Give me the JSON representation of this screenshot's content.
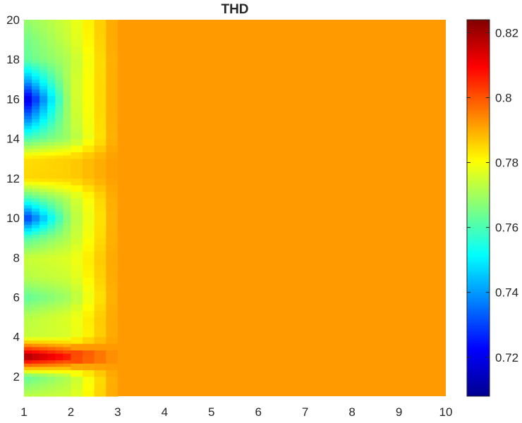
{
  "chart_data": {
    "type": "heatmap",
    "title": "THD",
    "xlabel": "",
    "ylabel": "",
    "xlim": [
      1,
      10
    ],
    "ylim": [
      1,
      20
    ],
    "x_ticks": [
      "1",
      "2",
      "3",
      "4",
      "5",
      "6",
      "7",
      "8",
      "9",
      "10"
    ],
    "y_ticks": [
      "2",
      "4",
      "6",
      "8",
      "10",
      "12",
      "14",
      "16",
      "18",
      "20"
    ],
    "colorbar": {
      "range": [
        0.708,
        0.824
      ],
      "ticks": [
        "0.72",
        "0.74",
        "0.76",
        "0.78",
        "0.8",
        "0.82"
      ],
      "colormap": "jet"
    },
    "x": [
      1,
      2,
      3,
      4,
      5,
      6,
      7,
      8,
      9,
      10
    ],
    "y": [
      1,
      2,
      3,
      4,
      5,
      6,
      7,
      8,
      9,
      10,
      11,
      12,
      13,
      14,
      15,
      16,
      17,
      18,
      19,
      20
    ],
    "x1_values": [
      0.773,
      0.762,
      0.823,
      0.774,
      0.772,
      0.762,
      0.772,
      0.774,
      0.76,
      0.726,
      0.758,
      0.785,
      0.784,
      0.76,
      0.735,
      0.714,
      0.74,
      0.762,
      0.764,
      0.768
    ],
    "x2_values": [
      0.775,
      0.772,
      0.808,
      0.776,
      0.777,
      0.77,
      0.775,
      0.777,
      0.772,
      0.77,
      0.773,
      0.786,
      0.786,
      0.77,
      0.772,
      0.773,
      0.773,
      0.772,
      0.775,
      0.776
    ],
    "other_columns_value": 0.792
  }
}
